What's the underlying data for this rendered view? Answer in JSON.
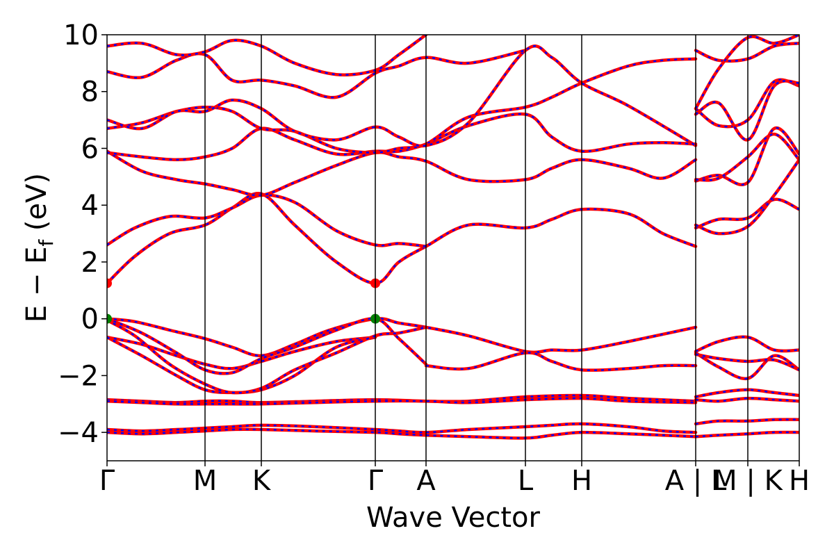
{
  "chart_data": {
    "type": "line",
    "title": "",
    "xlabel": "Wave Vector",
    "ylabel": "E − E",
    "ylabel_sub": "f",
    "ylabel_unit": " (eV)",
    "ylim": [
      -5,
      10
    ],
    "y_ticks": [
      {
        "value": 10,
        "label": "10"
      },
      {
        "value": 8,
        "label": "8"
      },
      {
        "value": 6,
        "label": "6"
      },
      {
        "value": 4,
        "label": "4"
      },
      {
        "value": 2,
        "label": "2"
      },
      {
        "value": 0,
        "label": "0"
      },
      {
        "value": -2,
        "label": "−2"
      },
      {
        "value": -4,
        "label": "−4"
      }
    ],
    "k_points": [
      {
        "label": "Γ",
        "k": 0.0
      },
      {
        "label": "M",
        "k": 0.141
      },
      {
        "label": "K",
        "k": 0.222
      },
      {
        "label": "Γ",
        "k": 0.386
      },
      {
        "label": "A",
        "k": 0.459
      },
      {
        "label": "L",
        "k": 0.602
      },
      {
        "label": "H",
        "k": 0.683
      },
      {
        "label": "A | L",
        "k": 0.847
      },
      {
        "label": "M | K",
        "k": 0.922
      },
      {
        "label": "H",
        "k": 0.996
      }
    ],
    "x_tick_labels": [
      {
        "label": "Γ",
        "k": 0.0
      },
      {
        "label": "M",
        "k": 0.141
      },
      {
        "label": "K",
        "k": 0.222
      },
      {
        "label": "Γ",
        "k": 0.386
      },
      {
        "label": "A",
        "k": 0.459
      },
      {
        "label": "L",
        "k": 0.602
      },
      {
        "label": "H",
        "k": 0.683
      },
      {
        "label": "A | L",
        "k": 0.847
      },
      {
        "label": "M | K",
        "k": 0.922
      },
      {
        "label": "H",
        "k": 0.996
      }
    ],
    "xlim": [
      0,
      0.996
    ],
    "segment_breaks": [
      0.847,
      0.922
    ],
    "band_colors": {
      "spin_up": "#ff0000",
      "spin_down": "#0000ff",
      "vbm_marker": "#008000",
      "cbm_marker": "#ff0000",
      "k_line": "#000000"
    },
    "bands": [
      {
        "x": [
          0.0,
          0.05,
          0.1,
          0.141,
          0.18,
          0.222,
          0.3,
          0.386,
          0.42,
          0.459,
          0.52,
          0.602,
          0.64,
          0.683,
          0.75,
          0.8,
          0.847
        ],
        "y": [
          -3.9,
          -3.95,
          -3.9,
          -3.85,
          -3.8,
          -3.75,
          -3.8,
          -3.9,
          -3.95,
          -4.0,
          -3.9,
          -3.8,
          -3.75,
          -3.7,
          -3.8,
          -3.95,
          -4.0
        ]
      },
      {
        "x": [
          0.0,
          0.05,
          0.1,
          0.141,
          0.18,
          0.222,
          0.3,
          0.386,
          0.42,
          0.459,
          0.52,
          0.602,
          0.64,
          0.683,
          0.75,
          0.8,
          0.847
        ],
        "y": [
          -4.0,
          -4.05,
          -4.0,
          -3.95,
          -3.9,
          -3.9,
          -3.95,
          -4.0,
          -4.05,
          -4.1,
          -4.15,
          -4.2,
          -4.1,
          -4.0,
          -4.05,
          -4.1,
          -4.15
        ]
      },
      {
        "x": [
          0.0,
          0.05,
          0.1,
          0.141,
          0.18,
          0.222,
          0.3,
          0.386,
          0.459,
          0.52,
          0.602,
          0.683,
          0.75,
          0.847
        ],
        "y": [
          -2.85,
          -2.9,
          -2.95,
          -2.9,
          -2.9,
          -2.95,
          -2.9,
          -2.85,
          -2.9,
          -2.9,
          -2.75,
          -2.7,
          -2.8,
          -2.9
        ]
      },
      {
        "x": [
          0.0,
          0.05,
          0.1,
          0.141,
          0.18,
          0.222,
          0.3,
          0.386,
          0.459,
          0.52,
          0.602,
          0.683,
          0.75,
          0.847
        ],
        "y": [
          -2.9,
          -2.95,
          -3.0,
          -3.0,
          -3.0,
          -3.0,
          -2.95,
          -2.9,
          -2.9,
          -2.95,
          -2.85,
          -2.8,
          -2.9,
          -2.95
        ]
      },
      {
        "x": [
          0.0,
          0.04,
          0.09,
          0.141,
          0.18,
          0.222,
          0.27,
          0.32,
          0.386,
          0.42,
          0.459,
          0.52,
          0.602,
          0.64,
          0.683,
          0.75,
          0.847
        ],
        "y": [
          0.0,
          -0.1,
          -0.4,
          -0.7,
          -1.0,
          -1.3,
          -0.9,
          -0.4,
          0.0,
          -0.15,
          -0.3,
          -0.6,
          -1.15,
          -1.1,
          -1.1,
          -0.8,
          -0.3
        ]
      },
      {
        "x": [
          0.0,
          0.05,
          0.1,
          0.141,
          0.18,
          0.222,
          0.27,
          0.33,
          0.386
        ],
        "y": [
          -0.65,
          -0.9,
          -1.3,
          -1.6,
          -1.75,
          -1.5,
          -1.15,
          -0.8,
          -0.65
        ]
      },
      {
        "x": [
          0.0,
          0.05,
          0.1,
          0.141,
          0.18,
          0.222,
          0.27,
          0.33,
          0.386,
          0.42,
          0.459
        ],
        "y": [
          0.0,
          -0.5,
          -1.2,
          -1.8,
          -1.9,
          -1.4,
          -1.0,
          -0.4,
          0.0,
          -0.7,
          -1.6
        ]
      },
      {
        "x": [
          0.0,
          0.05,
          0.1,
          0.141,
          0.18,
          0.222,
          0.27,
          0.33,
          0.386
        ],
        "y": [
          -0.65,
          -1.3,
          -2.0,
          -2.5,
          -2.6,
          -2.5,
          -2.0,
          -1.0,
          -0.65
        ]
      },
      {
        "x": [
          0.0,
          0.04,
          0.09,
          0.141,
          0.18,
          0.222,
          0.27,
          0.33,
          0.386,
          0.42,
          0.459
        ],
        "y": [
          -0.05,
          -0.6,
          -1.6,
          -2.3,
          -2.6,
          -2.45,
          -1.8,
          -1.2,
          -0.6,
          -0.5,
          -0.3
        ]
      },
      {
        "x": [
          0.459,
          0.52,
          0.602,
          0.64,
          0.683,
          0.75,
          0.8,
          0.847
        ],
        "y": [
          -1.65,
          -1.75,
          -1.2,
          -1.5,
          -1.8,
          -1.75,
          -1.65,
          -1.65
        ]
      },
      {
        "x": [
          0.0,
          0.04,
          0.09,
          0.141,
          0.18,
          0.222,
          0.27,
          0.33,
          0.386,
          0.42,
          0.459,
          0.52,
          0.602,
          0.64,
          0.683,
          0.75,
          0.8,
          0.847
        ],
        "y": [
          1.25,
          2.2,
          3.0,
          3.3,
          3.9,
          4.4,
          3.3,
          2.0,
          1.25,
          2.0,
          2.55,
          3.3,
          3.2,
          3.5,
          3.85,
          3.7,
          3.0,
          2.55
        ]
      },
      {
        "x": [
          0.0,
          0.04,
          0.09,
          0.141,
          0.18,
          0.222,
          0.27,
          0.33,
          0.386,
          0.42,
          0.459
        ],
        "y": [
          2.6,
          3.2,
          3.6,
          3.55,
          3.9,
          4.35,
          4.1,
          3.1,
          2.6,
          2.65,
          2.55
        ]
      },
      {
        "x": [
          0.0,
          0.05,
          0.1,
          0.141,
          0.18,
          0.222,
          0.27,
          0.33,
          0.386,
          0.42,
          0.459,
          0.52,
          0.602,
          0.64,
          0.683,
          0.75,
          0.8,
          0.847
        ],
        "y": [
          5.9,
          5.2,
          4.9,
          4.75,
          4.55,
          4.35,
          4.8,
          5.4,
          5.85,
          5.7,
          5.55,
          4.9,
          4.9,
          5.3,
          5.6,
          5.3,
          4.95,
          5.6
        ]
      },
      {
        "x": [
          0.0,
          0.05,
          0.1,
          0.141,
          0.18,
          0.222,
          0.27,
          0.33,
          0.386,
          0.42,
          0.459,
          0.52,
          0.602,
          0.64,
          0.683,
          0.75,
          0.8,
          0.847
        ],
        "y": [
          5.85,
          5.7,
          5.6,
          5.7,
          6.0,
          6.7,
          6.3,
          5.8,
          5.9,
          5.9,
          6.15,
          6.8,
          7.2,
          6.4,
          5.9,
          6.15,
          6.2,
          6.15
        ]
      },
      {
        "x": [
          0.0,
          0.05,
          0.1,
          0.141,
          0.18,
          0.222,
          0.27,
          0.33,
          0.386,
          0.42,
          0.459,
          0.52,
          0.602,
          0.64,
          0.683,
          0.75,
          0.8,
          0.847
        ],
        "y": [
          6.7,
          6.9,
          7.3,
          7.45,
          7.3,
          6.7,
          6.6,
          6.0,
          5.85,
          6.0,
          6.15,
          7.1,
          7.45,
          7.8,
          8.3,
          8.9,
          9.1,
          9.15
        ]
      },
      {
        "x": [
          0.0,
          0.05,
          0.1,
          0.141,
          0.18,
          0.222,
          0.27,
          0.33,
          0.386,
          0.42,
          0.459,
          0.52,
          0.602,
          0.64,
          0.683,
          0.75,
          0.847
        ],
        "y": [
          7.0,
          6.7,
          7.3,
          7.3,
          7.7,
          7.4,
          6.6,
          6.3,
          6.75,
          6.4,
          6.1,
          6.9,
          9.45,
          9.2,
          8.3,
          7.5,
          6.1
        ]
      },
      {
        "x": [
          0.0,
          0.05,
          0.1,
          0.141,
          0.18,
          0.222,
          0.27,
          0.33,
          0.386,
          0.42,
          0.459,
          0.52,
          0.602
        ],
        "y": [
          8.7,
          8.5,
          9.1,
          9.3,
          8.4,
          8.4,
          8.2,
          7.8,
          8.65,
          8.9,
          9.2,
          9.0,
          9.45
        ]
      },
      {
        "x": [
          0.0,
          0.05,
          0.1,
          0.141,
          0.18,
          0.222,
          0.27,
          0.33,
          0.386,
          0.42,
          0.459
        ],
        "y": [
          9.6,
          9.7,
          9.3,
          9.4,
          9.8,
          9.6,
          9.0,
          8.6,
          8.75,
          9.3,
          10.0
        ]
      }
    ],
    "right_segment_bands": [
      {
        "x": [
          0.847,
          0.88,
          0.922,
          0.96,
          0.996
        ],
        "y": [
          -3.7,
          -3.6,
          -3.6,
          -3.55,
          -3.55
        ]
      },
      {
        "x": [
          0.847,
          0.88,
          0.922,
          0.96,
          0.996
        ],
        "y": [
          -4.15,
          -4.1,
          -4.05,
          -4.0,
          -4.0
        ]
      },
      {
        "x": [
          0.847,
          0.88,
          0.922,
          0.96,
          0.996
        ],
        "y": [
          -2.75,
          -2.6,
          -2.5,
          -2.6,
          -2.7
        ]
      },
      {
        "x": [
          0.847,
          0.88,
          0.922,
          0.96,
          0.996
        ],
        "y": [
          -2.85,
          -2.9,
          -2.8,
          -2.85,
          -2.9
        ]
      },
      {
        "x": [
          0.847,
          0.88,
          0.922,
          0.96,
          0.996
        ],
        "y": [
          -1.15,
          -0.8,
          -0.65,
          -1.1,
          -1.1
        ]
      },
      {
        "x": [
          0.847,
          0.88,
          0.922,
          0.96,
          0.996
        ],
        "y": [
          -1.2,
          -1.7,
          -2.1,
          -1.3,
          -1.8
        ]
      },
      {
        "x": [
          0.847,
          0.88,
          0.922,
          0.96,
          0.996
        ],
        "y": [
          -1.25,
          -1.4,
          -1.5,
          -1.45,
          -1.8
        ]
      },
      {
        "x": [
          0.847,
          0.88,
          0.922,
          0.96,
          0.996
        ],
        "y": [
          3.2,
          3.5,
          3.55,
          4.2,
          3.85
        ]
      },
      {
        "x": [
          0.847,
          0.88,
          0.922,
          0.96,
          0.996
        ],
        "y": [
          3.3,
          3.0,
          3.25,
          4.35,
          5.6
        ]
      },
      {
        "x": [
          0.847,
          0.88,
          0.922,
          0.96,
          0.996
        ],
        "y": [
          4.85,
          5.05,
          4.8,
          6.7,
          5.8
        ]
      },
      {
        "x": [
          0.847,
          0.88,
          0.922,
          0.96,
          0.996
        ],
        "y": [
          4.9,
          4.95,
          5.7,
          6.5,
          5.6
        ]
      },
      {
        "x": [
          0.847,
          0.88,
          0.922,
          0.96,
          0.996
        ],
        "y": [
          7.4,
          6.8,
          7.0,
          8.35,
          8.2
        ]
      },
      {
        "x": [
          0.847,
          0.88,
          0.922,
          0.96,
          0.996
        ],
        "y": [
          7.2,
          7.6,
          6.3,
          8.2,
          8.3
        ]
      },
      {
        "x": [
          0.847,
          0.88,
          0.922,
          0.96,
          0.996
        ],
        "y": [
          9.45,
          9.1,
          9.15,
          9.6,
          9.7
        ]
      },
      {
        "x": [
          0.847,
          0.88,
          0.922,
          0.96,
          0.996
        ],
        "y": [
          7.4,
          8.8,
          9.9,
          9.7,
          10.0
        ]
      }
    ],
    "markers": [
      {
        "k": 0.0,
        "E": 0.0,
        "color": "#008000"
      },
      {
        "k": 0.386,
        "E": 0.0,
        "color": "#008000"
      },
      {
        "k": 0.0,
        "E": 1.25,
        "color": "#ff0000"
      },
      {
        "k": 0.386,
        "E": 1.25,
        "color": "#ff0000"
      }
    ]
  }
}
